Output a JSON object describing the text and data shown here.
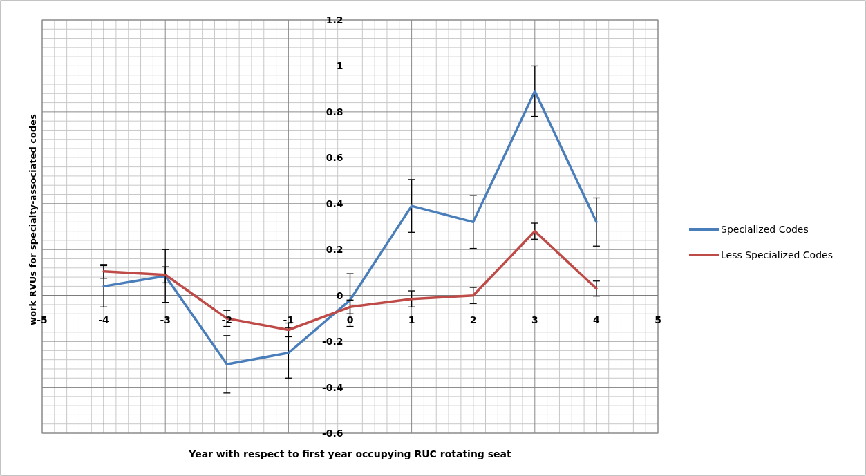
{
  "chart_data": {
    "type": "line",
    "xlabel": "Year with respect to first year occupying  RUC rotating seat",
    "ylabel": "work RVUs  for specialty-associated  codes",
    "x": [
      -4,
      -3,
      -2,
      -1,
      0,
      1,
      2,
      3,
      4
    ],
    "series": [
      {
        "name": "Specialized Codes",
        "color": "#4a7ebb",
        "values": [
          0.04,
          0.085,
          -0.3,
          -0.25,
          -0.02,
          0.39,
          0.32,
          0.89,
          0.32
        ],
        "errors": [
          0.09,
          0.115,
          0.125,
          0.11,
          0.115,
          0.115,
          0.115,
          0.11,
          0.105
        ]
      },
      {
        "name": "Less Specialized Codes",
        "color": "#be4b48",
        "values": [
          0.105,
          0.09,
          -0.1,
          -0.15,
          -0.05,
          -0.015,
          0,
          0.28,
          0.03
        ],
        "errors": [
          0.03,
          0.035,
          0.035,
          0.03,
          0.03,
          0.035,
          0.035,
          0.035,
          0.033
        ]
      }
    ],
    "xlim": [
      -5,
      5
    ],
    "xticks": [
      -5,
      -4,
      -3,
      -2,
      -1,
      0,
      1,
      2,
      3,
      4,
      5
    ],
    "ylim": [
      -0.6,
      1.2
    ],
    "yticks": [
      -0.6,
      -0.4,
      -0.2,
      0,
      0.2,
      0.4,
      0.6,
      0.8,
      1,
      1.2
    ],
    "grid": true,
    "legend": "right",
    "marker": "none",
    "line_style": "solid"
  }
}
